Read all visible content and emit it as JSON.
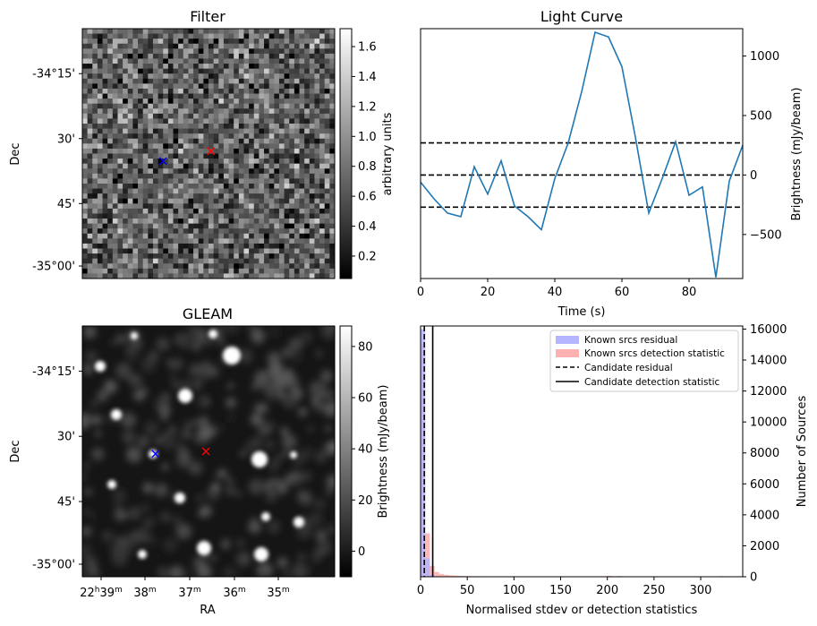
{
  "colors": {
    "line": "#1f77b4",
    "known_residual": "#b4b4ff",
    "known_detection": "#ffb0b0",
    "marker_red": "#ff0000",
    "marker_blue": "#0000ff"
  },
  "filter_panel": {
    "title": "Filter",
    "ylabel": "Dec",
    "yticks": [
      "-34°15'",
      "30'",
      "45'",
      "-35°00'"
    ],
    "colorbar": {
      "label": "arbitrary units",
      "ticks": [
        "0.2",
        "0.4",
        "0.6",
        "0.8",
        "1.0",
        "1.2",
        "1.4",
        "1.6"
      ],
      "range": [
        0.05,
        1.72
      ]
    },
    "red_marker": [
      0.51,
      0.49
    ],
    "blue_marker": [
      0.32,
      0.53
    ]
  },
  "gleam_panel": {
    "title": "GLEAM",
    "ylabel": "Dec",
    "xlabel": "RA",
    "xticks": [
      {
        "h": "22",
        "hs": "h",
        "m": "39",
        "ms": "m"
      },
      {
        "m": "38",
        "ms": "m"
      },
      {
        "m": "37",
        "ms": "m"
      },
      {
        "m": "36",
        "ms": "m"
      },
      {
        "m": "35",
        "ms": "m"
      }
    ],
    "yticks": [
      "-34°15'",
      "30'",
      "45'",
      "-35°00'"
    ],
    "colorbar": {
      "label": "Brightness (mJy/beam)",
      "ticks": [
        "0",
        "20",
        "40",
        "60",
        "80"
      ],
      "range": [
        -10,
        88
      ]
    },
    "red_marker": [
      0.49,
      0.5
    ],
    "blue_marker": [
      0.29,
      0.51
    ]
  },
  "chart_data": [
    {
      "type": "line",
      "title": "Light Curve",
      "xlabel": "Time (s)",
      "ylabel": "Brightness (mJy/beam)",
      "xlim": [
        0,
        96
      ],
      "ylim": [
        -870,
        1230
      ],
      "xticks": [
        0,
        20,
        40,
        60,
        80
      ],
      "yticks": [
        -500,
        0,
        500,
        1000
      ],
      "y_axis_side": "right",
      "x": [
        0,
        4,
        8,
        12,
        16,
        20,
        24,
        28,
        32,
        36,
        40,
        44,
        48,
        52,
        56,
        60,
        64,
        68,
        72,
        76,
        80,
        84,
        88,
        92,
        96
      ],
      "y": [
        -60,
        -200,
        -320,
        -350,
        70,
        -160,
        120,
        -260,
        -350,
        -460,
        -30,
        270,
        700,
        1200,
        1160,
        910,
        320,
        -320,
        -30,
        280,
        -170,
        -100,
        -860,
        -50,
        250
      ],
      "hlines": [
        {
          "y": 270,
          "style": "dashed"
        },
        {
          "y": 0,
          "style": "dashed"
        },
        {
          "y": -270,
          "style": "dashed"
        }
      ]
    },
    {
      "type": "bar",
      "title": "",
      "xlabel": "Normalised stdev or detection statistics",
      "ylabel": "Number of Sources",
      "xlim": [
        0,
        345
      ],
      "ylim": [
        0,
        16200
      ],
      "xticks": [
        0,
        50,
        100,
        150,
        200,
        250,
        300
      ],
      "yticks": [
        0,
        2000,
        4000,
        6000,
        8000,
        10000,
        12000,
        14000,
        16000
      ],
      "y_axis_side": "right",
      "bin_width": 5,
      "legend_position": "top-right",
      "series": [
        {
          "name": "Known srcs residual",
          "bin_starts": [
            0,
            5,
            10,
            15
          ],
          "values": [
            16000,
            1200,
            120,
            20
          ]
        },
        {
          "name": "Known srcs detection statistic",
          "bin_starts": [
            0,
            5,
            10,
            15,
            20,
            25,
            30,
            35,
            40,
            45,
            50,
            55,
            60,
            65,
            70,
            75,
            80,
            85,
            90,
            95,
            100,
            110,
            120,
            130,
            140,
            150,
            160,
            170,
            180,
            190,
            200,
            210,
            220,
            230,
            240,
            250,
            260,
            270,
            280,
            290,
            300,
            310,
            320,
            330
          ],
          "values": [
            15000,
            2800,
            700,
            300,
            180,
            120,
            90,
            70,
            55,
            45,
            40,
            35,
            30,
            28,
            25,
            22,
            20,
            18,
            16,
            15,
            14,
            12,
            12,
            10,
            10,
            10,
            9,
            8,
            8,
            7,
            60,
            50,
            8,
            6,
            6,
            5,
            5,
            5,
            4,
            4,
            4,
            3,
            40,
            3
          ]
        }
      ],
      "vlines": [
        {
          "name": "Candidate residual",
          "x": 4,
          "style": "dashed"
        },
        {
          "name": "Candidate detection statistic",
          "x": 13,
          "style": "solid"
        }
      ]
    }
  ]
}
